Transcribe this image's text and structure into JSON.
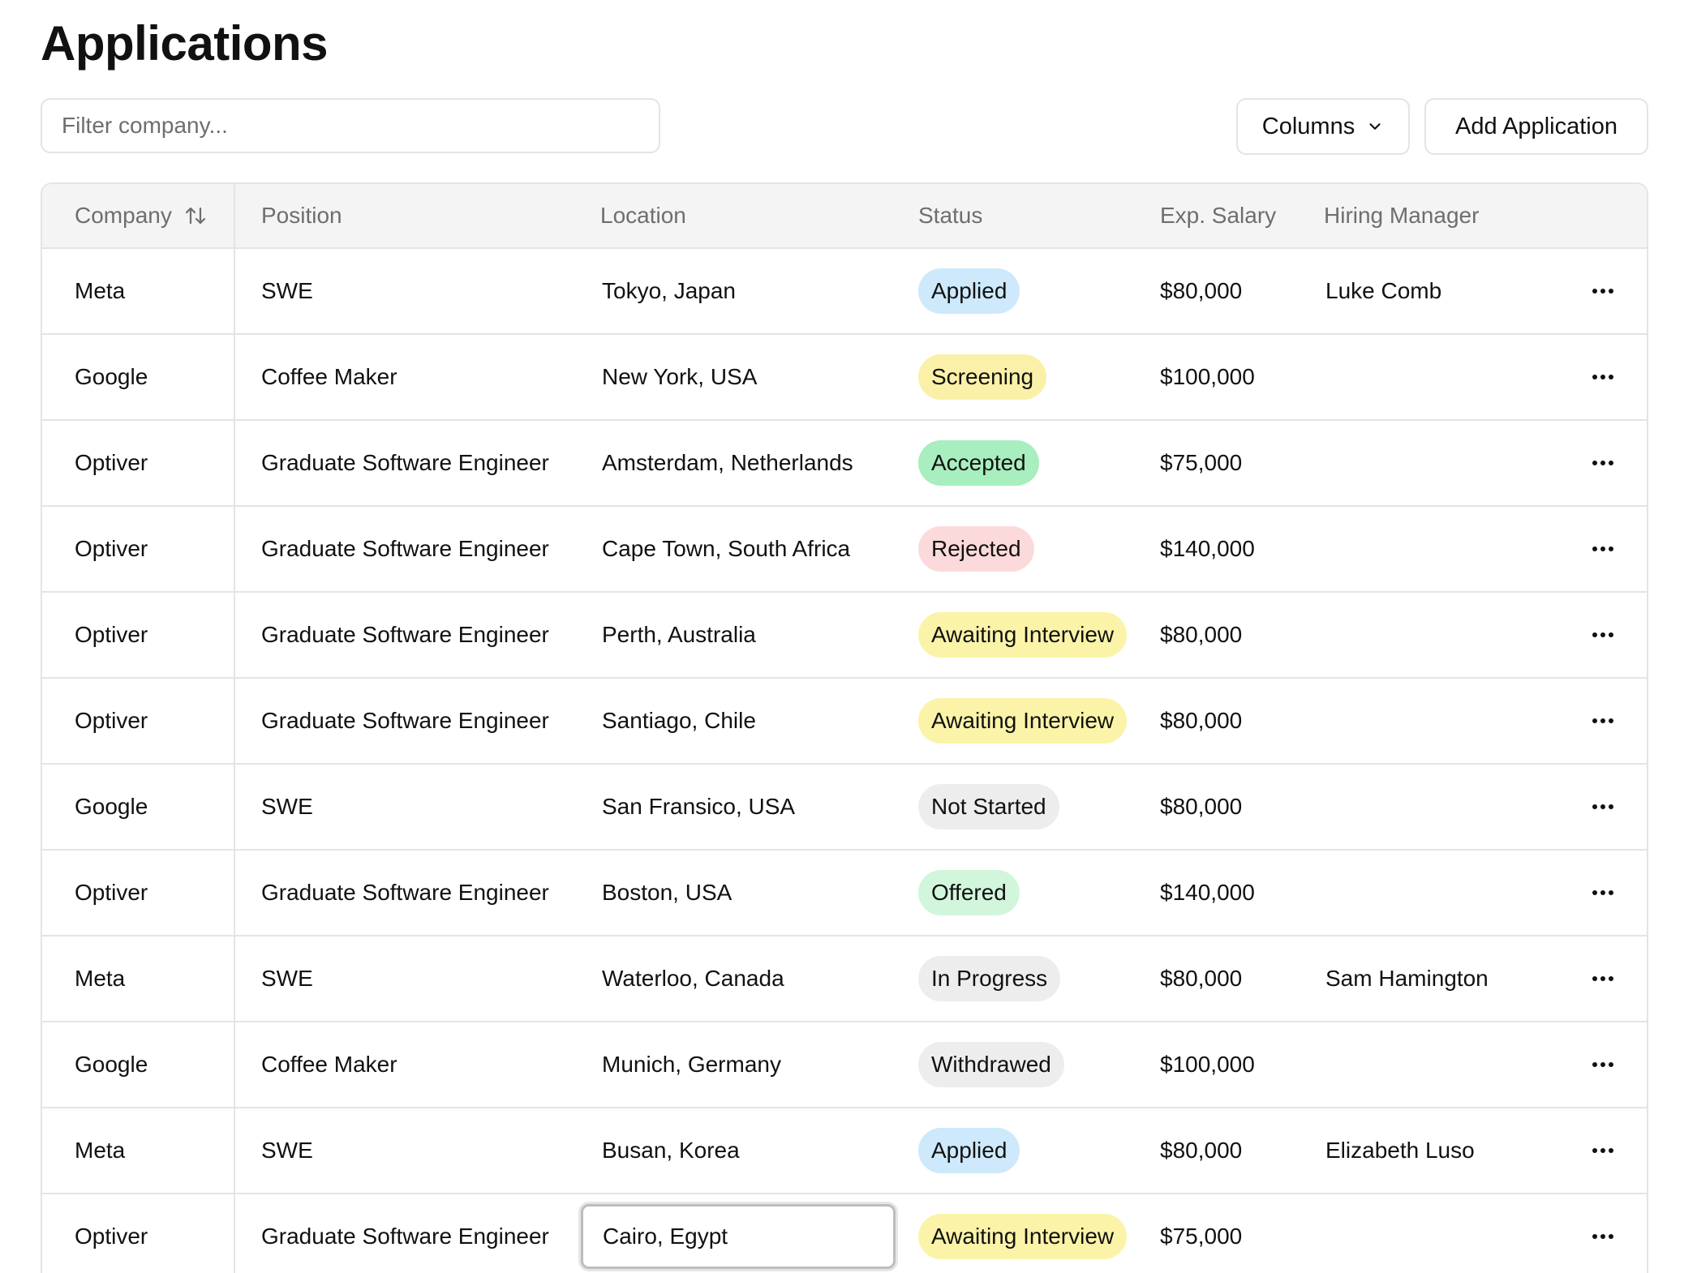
{
  "page": {
    "title": "Applications"
  },
  "filter": {
    "placeholder": "Filter company..."
  },
  "toolbar": {
    "columns_label": "Columns",
    "add_label": "Add Application"
  },
  "table": {
    "headers": {
      "company": "Company",
      "position": "Position",
      "location": "Location",
      "status": "Status",
      "salary": "Exp. Salary",
      "manager": "Hiring Manager"
    },
    "rows": [
      {
        "company": "Meta",
        "position": "SWE",
        "location": "Tokyo, Japan",
        "status": "Applied",
        "status_color": "#cde9fb",
        "salary": "$80,000",
        "manager": "Luke Comb"
      },
      {
        "company": "Google",
        "position": "Coffee Maker",
        "location": "New York, USA",
        "status": "Screening",
        "status_color": "#fbf0a8",
        "salary": "$100,000",
        "manager": ""
      },
      {
        "company": "Optiver",
        "position": "Graduate Software Engineer",
        "location": "Amsterdam, Netherlands",
        "status": "Accepted",
        "status_color": "#a8eebf",
        "salary": "$75,000",
        "manager": ""
      },
      {
        "company": "Optiver",
        "position": "Graduate Software Engineer",
        "location": "Cape Town, South Africa",
        "status": "Rejected",
        "status_color": "#fcdadc",
        "salary": "$140,000",
        "manager": ""
      },
      {
        "company": "Optiver",
        "position": "Graduate Software Engineer",
        "location": "Perth, Australia",
        "status": "Awaiting Interview",
        "status_color": "#fbf3a8",
        "salary": "$80,000",
        "manager": ""
      },
      {
        "company": "Optiver",
        "position": "Graduate Software Engineer",
        "location": "Santiago, Chile",
        "status": "Awaiting Interview",
        "status_color": "#fbf3a8",
        "salary": "$80,000",
        "manager": ""
      },
      {
        "company": "Google",
        "position": "SWE",
        "location": "San Fransico, USA",
        "status": "Not Started",
        "status_color": "#ededed",
        "salary": "$80,000",
        "manager": ""
      },
      {
        "company": "Optiver",
        "position": "Graduate Software Engineer",
        "location": "Boston, USA",
        "status": "Offered",
        "status_color": "#d2f6dc",
        "salary": "$140,000",
        "manager": ""
      },
      {
        "company": "Meta",
        "position": "SWE",
        "location": "Waterloo, Canada",
        "status": "In Progress",
        "status_color": "#ededed",
        "salary": "$80,000",
        "manager": "Sam Hamington"
      },
      {
        "company": "Google",
        "position": "Coffee Maker",
        "location": "Munich, Germany",
        "status": "Withdrawed",
        "status_color": "#ededed",
        "salary": "$100,000",
        "manager": ""
      },
      {
        "company": "Meta",
        "position": "SWE",
        "location": "Busan, Korea",
        "status": "Applied",
        "status_color": "#cde9fb",
        "salary": "$80,000",
        "manager": "Elizabeth Luso"
      },
      {
        "company": "Optiver",
        "position": "Graduate Software Engineer",
        "location": "Cairo, Egypt",
        "status": "Awaiting Interview",
        "status_color": "#fbf3a8",
        "salary": "$75,000",
        "manager": "",
        "editing": "location"
      }
    ]
  },
  "icons": {
    "sort": "sort-arrows-icon",
    "chevron": "chevron-down-icon",
    "more": "more-horizontal-icon"
  }
}
